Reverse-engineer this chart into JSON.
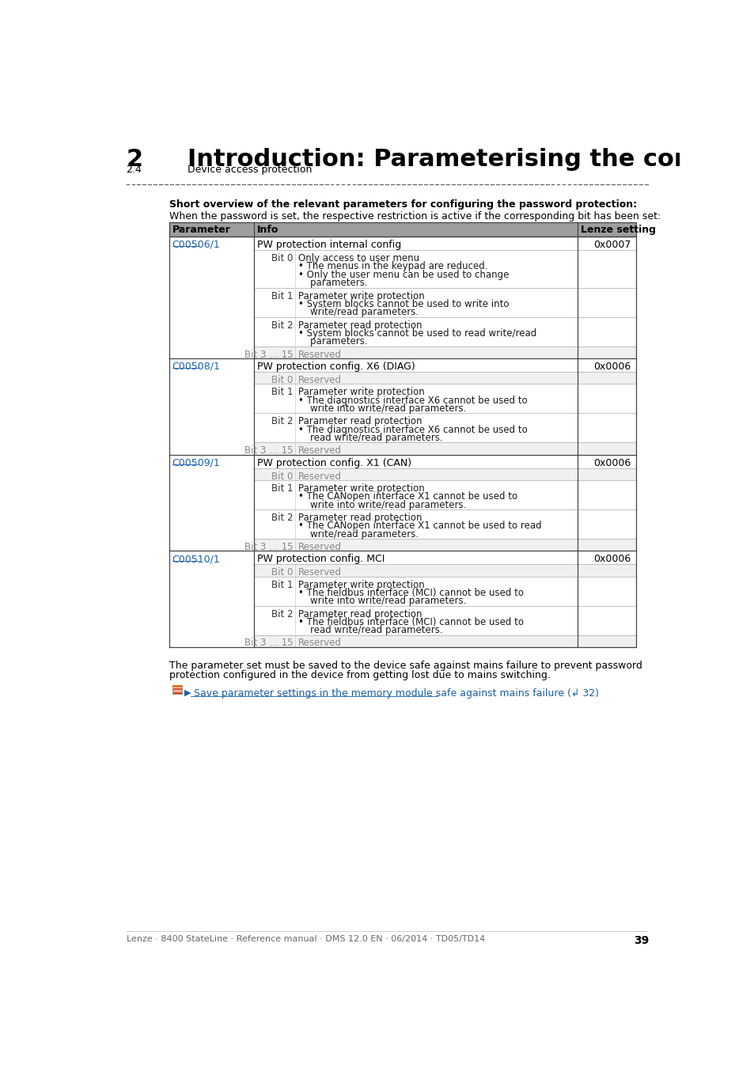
{
  "page_title_num": "2",
  "page_title_text": "Introduction: Parameterising the controller",
  "page_subtitle_num": "2.4",
  "page_subtitle_text": "Device access protection",
  "bold_intro": "Short overview of the relevant parameters for configuring the password protection:",
  "normal_intro": "When the password is set, the respective restriction is active if the corresponding bit has been set:",
  "table_headers": [
    "Parameter",
    "Info",
    "Lenze setting"
  ],
  "header_bg": "#9e9e9e",
  "link_color": "#1a5fa8",
  "gray_text": "#888888",
  "footer_text": "Lenze · 8400 StateLine · Reference manual · DMS 12.0 EN · 06/2014 · TD05/TD14",
  "page_number": "39",
  "note_line1": "The parameter set must be saved to the device safe against mains failure to prevent password",
  "note_line2": "protection configured in the device from getting lost due to mains switching.",
  "link_arrow": "▶",
  "link_text": " Save parameter settings in the memory module safe against mains failure (↲ 32)",
  "rows": [
    {
      "param": "C00506/1",
      "info_main": "PW protection internal config",
      "lenze": "0x0007",
      "sub_rows": [
        {
          "bit": "Bit 0",
          "text": "Only access to user menu\n• The menus in the keypad are reduced.\n• Only the user menu can be used to change\n    parameters.",
          "gray": false
        },
        {
          "bit": "Bit 1",
          "text": "Parameter write protection\n• System blocks cannot be used to write into\n    write/read parameters.",
          "gray": false
        },
        {
          "bit": "Bit 2",
          "text": "Parameter read protection\n• System blocks cannot be used to read write/read\n    parameters.",
          "gray": false
        },
        {
          "bit": "Bit 3 … 15",
          "text": "Reserved",
          "gray": true
        }
      ]
    },
    {
      "param": "C00508/1",
      "info_main": "PW protection config. X6 (DIAG)",
      "lenze": "0x0006",
      "sub_rows": [
        {
          "bit": "Bit 0",
          "text": "Reserved",
          "gray": true
        },
        {
          "bit": "Bit 1",
          "text": "Parameter write protection\n• The diagnostics interface X6 cannot be used to\n    write into write/read parameters.",
          "gray": false
        },
        {
          "bit": "Bit 2",
          "text": "Parameter read protection\n• The diagnostics interface X6 cannot be used to\n    read write/read parameters.",
          "gray": false
        },
        {
          "bit": "Bit 3 … 15",
          "text": "Reserved",
          "gray": true
        }
      ]
    },
    {
      "param": "C00509/1",
      "info_main": "PW protection config. X1 (CAN)",
      "lenze": "0x0006",
      "sub_rows": [
        {
          "bit": "Bit 0",
          "text": "Reserved",
          "gray": true
        },
        {
          "bit": "Bit 1",
          "text": "Parameter write protection\n• The CANopen interface X1 cannot be used to\n    write into write/read parameters.",
          "gray": false
        },
        {
          "bit": "Bit 2",
          "text": "Parameter read protection\n• The CANopen interface X1 cannot be used to read\n    write/read parameters.",
          "gray": false
        },
        {
          "bit": "Bit 3 … 15",
          "text": "Reserved",
          "gray": true
        }
      ]
    },
    {
      "param": "C00510/1",
      "info_main": "PW protection config. MCI",
      "lenze": "0x0006",
      "sub_rows": [
        {
          "bit": "Bit 0",
          "text": "Reserved",
          "gray": true
        },
        {
          "bit": "Bit 1",
          "text": "Parameter write protection\n• The fieldbus interface (MCI) cannot be used to\n    write into write/read parameters.",
          "gray": false
        },
        {
          "bit": "Bit 2",
          "text": "Parameter read protection\n• The fieldbus interface (MCI) cannot be used to\n    read write/read parameters.",
          "gray": false
        },
        {
          "bit": "Bit 3 … 15",
          "text": "Reserved",
          "gray": true
        }
      ]
    }
  ]
}
